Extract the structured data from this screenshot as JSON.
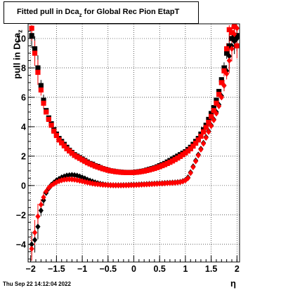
{
  "title": {
    "main": "Fitted pull in Dca",
    "sub": "z",
    "rest": " for Global Rec Pion EtapT"
  },
  "ylabel": {
    "main": "pull in Dca",
    "sub": "z"
  },
  "xlabel": "η",
  "footer": "Thu Sep 22 14:12:04 2022",
  "colors": {
    "series_black": "#000000",
    "series_red": "#ff0000",
    "frame": "#000000",
    "grid": "#000000"
  },
  "chart_data": {
    "type": "scatter",
    "xlim": [
      -2.05,
      2.05
    ],
    "ylim": [
      -5.2,
      11.0
    ],
    "grid": true,
    "x_ticks": [
      "−2",
      "−1.5",
      "−1",
      "−0.5",
      "0",
      "0.5",
      "1",
      "1.5",
      "2"
    ],
    "x_tick_values": [
      -2,
      -1.5,
      -1,
      -0.5,
      0,
      0.5,
      1,
      1.5,
      2
    ],
    "y_ticks": [
      "−4",
      "−2",
      "0",
      "2",
      "4",
      "6",
      "8",
      "10"
    ],
    "y_tick_values": [
      -4,
      -2,
      0,
      2,
      4,
      6,
      8,
      10
    ],
    "series": [
      {
        "marker": "square",
        "color": "#000000",
        "x": [
          -1.98,
          -1.92,
          -1.86,
          -1.8,
          -1.75,
          -1.7,
          -1.65,
          -1.6,
          -1.55,
          -1.5,
          -1.45,
          -1.4,
          -1.35,
          -1.3,
          -1.25,
          -1.2,
          -1.15,
          -1.1,
          -1.05,
          -1.0,
          -0.95,
          -0.9,
          -0.85,
          -0.8,
          -0.75,
          -0.7,
          -0.65,
          -0.6,
          -0.55,
          -0.5,
          -0.45,
          -0.4,
          -0.35,
          -0.3,
          -0.25,
          -0.2,
          -0.15,
          -0.1,
          -0.05,
          0.0,
          0.05,
          0.1,
          0.15,
          0.2,
          0.25,
          0.3,
          0.35,
          0.4,
          0.45,
          0.5,
          0.55,
          0.6,
          0.65,
          0.7,
          0.75,
          0.8,
          0.85,
          0.9,
          0.95,
          1.0,
          1.05,
          1.1,
          1.15,
          1.2,
          1.25,
          1.3,
          1.35,
          1.4,
          1.45,
          1.5,
          1.55,
          1.6,
          1.65,
          1.7,
          1.75,
          1.8,
          1.85,
          1.9,
          1.95,
          2.0
        ],
        "y": [
          10.2,
          9.3,
          8.0,
          6.8,
          5.8,
          5.1,
          4.6,
          4.2,
          3.8,
          3.5,
          3.2,
          3.0,
          2.8,
          2.6,
          2.4,
          2.25,
          2.1,
          2.0,
          1.9,
          1.8,
          1.7,
          1.6,
          1.5,
          1.45,
          1.35,
          1.3,
          1.22,
          1.15,
          1.1,
          1.05,
          1.0,
          0.98,
          0.95,
          0.93,
          0.91,
          0.9,
          0.89,
          0.89,
          0.89,
          0.9,
          0.92,
          0.94,
          0.97,
          1.0,
          1.05,
          1.1,
          1.15,
          1.2,
          1.27,
          1.35,
          1.42,
          1.5,
          1.6,
          1.7,
          1.8,
          1.9,
          2.0,
          2.1,
          2.2,
          2.3,
          2.45,
          2.6,
          2.8,
          3.0,
          3.2,
          3.5,
          3.8,
          4.1,
          4.5,
          4.9,
          5.3,
          5.8,
          6.4,
          7.2,
          8.0,
          9.0,
          9.5,
          10.0,
          10.1,
          10.2
        ]
      },
      {
        "marker": "diamond",
        "color": "#000000",
        "x": [
          -1.98,
          -1.92,
          -1.86,
          -1.8,
          -1.75,
          -1.7,
          -1.65,
          -1.6,
          -1.55,
          -1.5,
          -1.45,
          -1.4,
          -1.35,
          -1.3,
          -1.25,
          -1.2,
          -1.15,
          -1.1,
          -1.05,
          -1.0,
          -0.95,
          -0.9,
          -0.85,
          -0.8,
          -0.75,
          -0.7,
          -0.65,
          -0.6,
          -0.55,
          -0.5,
          -0.45,
          -0.4,
          -0.35,
          -0.3,
          -0.25,
          -0.2,
          -0.15,
          -0.1,
          -0.05,
          0.0,
          0.05,
          0.1,
          0.15,
          0.2,
          0.25,
          0.3,
          0.35,
          0.4,
          0.45,
          0.5,
          0.55,
          0.6,
          0.65,
          0.7,
          0.75,
          0.8,
          0.85,
          0.9,
          0.95,
          1.0,
          1.05,
          1.1,
          1.15,
          1.2,
          1.25,
          1.3,
          1.35,
          1.4,
          1.45,
          1.5,
          1.55,
          1.6,
          1.65,
          1.7,
          1.75,
          1.8,
          1.85,
          1.9,
          1.95,
          2.0
        ],
        "y": [
          -4.0,
          -3.7,
          -2.8,
          -1.7,
          -1.0,
          -0.5,
          -0.2,
          0.05,
          0.2,
          0.35,
          0.45,
          0.55,
          0.62,
          0.68,
          0.7,
          0.72,
          0.7,
          0.67,
          0.62,
          0.55,
          0.48,
          0.4,
          0.33,
          0.27,
          0.21,
          0.16,
          0.12,
          0.09,
          0.06,
          0.04,
          0.03,
          0.02,
          0.02,
          0.02,
          0.02,
          0.03,
          0.03,
          0.04,
          0.05,
          0.05,
          0.06,
          0.07,
          0.08,
          0.09,
          0.1,
          0.11,
          0.12,
          0.13,
          0.14,
          0.15,
          0.16,
          0.17,
          0.18,
          0.19,
          0.2,
          0.21,
          0.23,
          0.25,
          0.3,
          0.38,
          0.55,
          0.9,
          1.3,
          1.7,
          2.1,
          2.5,
          2.9,
          3.3,
          3.7,
          4.1,
          4.5,
          5.0,
          5.5,
          6.1,
          6.8,
          7.8,
          8.8,
          9.5,
          9.8,
          10.0
        ]
      },
      {
        "marker": "square",
        "color": "#ff0000",
        "x": [
          -1.98,
          -1.92,
          -1.86,
          -1.8,
          -1.75,
          -1.7,
          -1.65,
          -1.6,
          -1.55,
          -1.5,
          -1.45,
          -1.4,
          -1.35,
          -1.3,
          -1.25,
          -1.2,
          -1.15,
          -1.1,
          -1.05,
          -1.0,
          -0.95,
          -0.9,
          -0.85,
          -0.8,
          -0.75,
          -0.7,
          -0.65,
          -0.6,
          -0.55,
          -0.5,
          -0.45,
          -0.4,
          -0.35,
          -0.3,
          -0.25,
          -0.2,
          -0.15,
          -0.1,
          -0.05,
          0.0,
          0.05,
          0.1,
          0.15,
          0.2,
          0.25,
          0.3,
          0.35,
          0.4,
          0.45,
          0.5,
          0.55,
          0.6,
          0.65,
          0.7,
          0.75,
          0.8,
          0.85,
          0.9,
          0.95,
          1.0,
          1.05,
          1.1,
          1.15,
          1.2,
          1.25,
          1.3,
          1.35,
          1.4,
          1.45,
          1.5,
          1.55,
          1.6,
          1.65,
          1.7,
          1.75,
          1.8,
          1.85,
          1.9,
          1.95,
          2.0
        ],
        "y": [
          10.7,
          9.0,
          7.7,
          6.5,
          5.6,
          5.0,
          4.5,
          4.1,
          3.7,
          3.4,
          3.1,
          2.9,
          2.7,
          2.5,
          2.35,
          2.2,
          2.05,
          1.95,
          1.85,
          1.75,
          1.65,
          1.55,
          1.47,
          1.4,
          1.32,
          1.26,
          1.2,
          1.14,
          1.09,
          1.04,
          1.0,
          0.97,
          0.94,
          0.92,
          0.9,
          0.89,
          0.88,
          0.88,
          0.88,
          0.89,
          0.9,
          0.92,
          0.95,
          0.98,
          1.02,
          1.06,
          1.11,
          1.16,
          1.22,
          1.28,
          1.35,
          1.42,
          1.5,
          1.58,
          1.67,
          1.77,
          1.87,
          1.98,
          2.1,
          2.22,
          2.35,
          2.5,
          2.68,
          2.88,
          3.1,
          3.35,
          3.65,
          3.95,
          4.3,
          4.7,
          5.1,
          5.6,
          6.2,
          7.0,
          7.8,
          9.3,
          10.6,
          10.4,
          10.8,
          9.5
        ]
      },
      {
        "marker": "diamond",
        "color": "#ff0000",
        "x": [
          -1.98,
          -1.92,
          -1.86,
          -1.8,
          -1.75,
          -1.7,
          -1.65,
          -1.6,
          -1.55,
          -1.5,
          -1.45,
          -1.4,
          -1.35,
          -1.3,
          -1.25,
          -1.2,
          -1.15,
          -1.1,
          -1.05,
          -1.0,
          -0.95,
          -0.9,
          -0.85,
          -0.8,
          -0.75,
          -0.7,
          -0.65,
          -0.6,
          -0.55,
          -0.5,
          -0.45,
          -0.4,
          -0.35,
          -0.3,
          -0.25,
          -0.2,
          -0.15,
          -0.1,
          -0.05,
          0.0,
          0.05,
          0.1,
          0.15,
          0.2,
          0.25,
          0.3,
          0.35,
          0.4,
          0.45,
          0.5,
          0.55,
          0.6,
          0.65,
          0.7,
          0.75,
          0.8,
          0.85,
          0.9,
          0.95,
          1.0,
          1.05,
          1.1,
          1.15,
          1.2,
          1.25,
          1.3,
          1.35,
          1.4,
          1.45,
          1.5,
          1.55,
          1.6,
          1.65,
          1.7,
          1.75,
          1.8,
          1.85,
          1.9,
          1.95,
          2.0
        ],
        "y": [
          -4.3,
          -3.2,
          -2.1,
          -1.3,
          -0.8,
          -0.4,
          -0.15,
          0.0,
          0.12,
          0.22,
          0.3,
          0.36,
          0.4,
          0.42,
          0.43,
          0.42,
          0.4,
          0.37,
          0.33,
          0.29,
          0.25,
          0.21,
          0.17,
          0.14,
          0.11,
          0.09,
          0.07,
          0.05,
          0.04,
          0.03,
          0.02,
          0.02,
          0.01,
          0.01,
          0.01,
          0.01,
          0.02,
          0.02,
          0.03,
          0.03,
          0.04,
          0.05,
          0.06,
          0.07,
          0.08,
          0.09,
          0.1,
          0.11,
          0.12,
          0.13,
          0.14,
          0.15,
          0.16,
          0.17,
          0.18,
          0.19,
          0.21,
          0.23,
          0.28,
          0.35,
          0.5,
          0.85,
          1.25,
          1.65,
          2.05,
          2.45,
          2.85,
          3.25,
          3.65,
          4.05,
          4.45,
          4.9,
          5.4,
          6.0,
          6.8,
          7.6,
          8.5,
          9.3,
          10.3,
          10.7
        ]
      }
    ]
  }
}
